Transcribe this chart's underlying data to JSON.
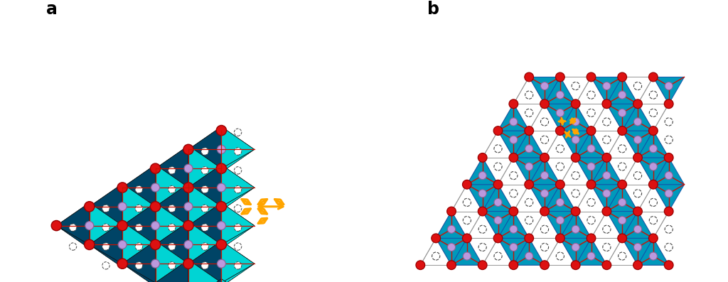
{
  "fig_width": 10.24,
  "fig_height": 3.97,
  "dpi": 100,
  "label_a": "a",
  "label_b": "b",
  "label_fontsize": 17,
  "label_fontweight": "bold",
  "ct_light": "#00D4D4",
  "ct_mid": "#0099BB",
  "ct_dark": "#006688",
  "ct_shadow": "#004466",
  "cr": "#DD1111",
  "cr_edge": "#990000",
  "cp": "#BB99DD",
  "cp_edge": "#886699",
  "ca": "#FFA500",
  "cg": "#888888",
  "clr": "#CC1100",
  "bg": "#FFFFFF"
}
